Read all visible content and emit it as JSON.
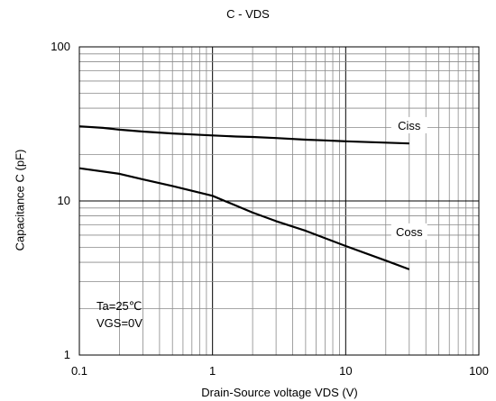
{
  "chart_data": {
    "type": "line",
    "title": "C - VDS",
    "xlabel": "Drain-Source voltage VDS (V)",
    "ylabel": "Capacitance C (pF)",
    "xscale": "log",
    "yscale": "log",
    "xlim": [
      0.1,
      100
    ],
    "ylim": [
      1,
      100
    ],
    "grid": true,
    "x_ticks": [
      "0.1",
      "1",
      "10",
      "100"
    ],
    "y_ticks": [
      "1",
      "10",
      "100"
    ],
    "annotations": [
      "Ta=25℃",
      "VGS=0V"
    ],
    "series": [
      {
        "name": "Ciss",
        "x": [
          0.1,
          0.15,
          0.2,
          0.3,
          0.5,
          0.7,
          1,
          1.5,
          2,
          3,
          5,
          7,
          10,
          15,
          20,
          30
        ],
        "y": [
          30.5,
          29.8,
          29.0,
          28.2,
          27.4,
          27.0,
          26.6,
          26.2,
          26.0,
          25.6,
          25.0,
          24.7,
          24.4,
          24.1,
          23.9,
          23.6
        ]
      },
      {
        "name": "Coss",
        "x": [
          0.1,
          0.2,
          0.3,
          0.5,
          1,
          2,
          3,
          5,
          10,
          20,
          30
        ],
        "y": [
          16.3,
          15.0,
          13.8,
          12.5,
          10.8,
          8.4,
          7.4,
          6.4,
          5.1,
          4.1,
          3.6
        ]
      }
    ],
    "line_color": "#000000"
  }
}
